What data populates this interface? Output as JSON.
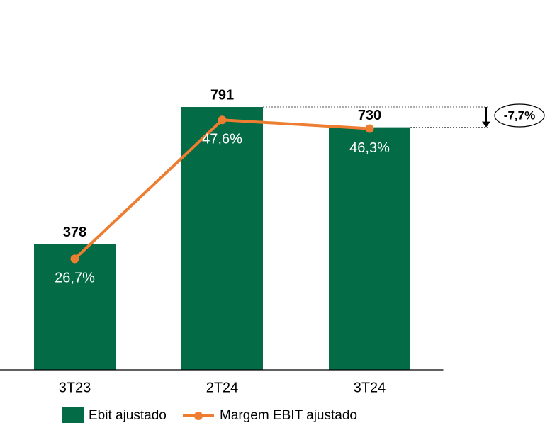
{
  "chart_data": {
    "type": "combo",
    "categories": [
      "3T23",
      "2T24",
      "3T24"
    ],
    "series": [
      {
        "name": "Ebit ajustado",
        "type": "bar",
        "color": "#036b45",
        "values": [
          378,
          791,
          730
        ]
      },
      {
        "name": "Margem EBIT ajustado",
        "type": "line",
        "axis": "y2",
        "color": "#ed7d31",
        "values": [
          26.7,
          47.6,
          46.3
        ],
        "value_labels": [
          "26,7%",
          "47,6%",
          "46,3%"
        ]
      }
    ],
    "ylim": [
      0,
      1000
    ],
    "y2lim": [
      10,
      60
    ],
    "annotation": "-7,7%"
  }
}
